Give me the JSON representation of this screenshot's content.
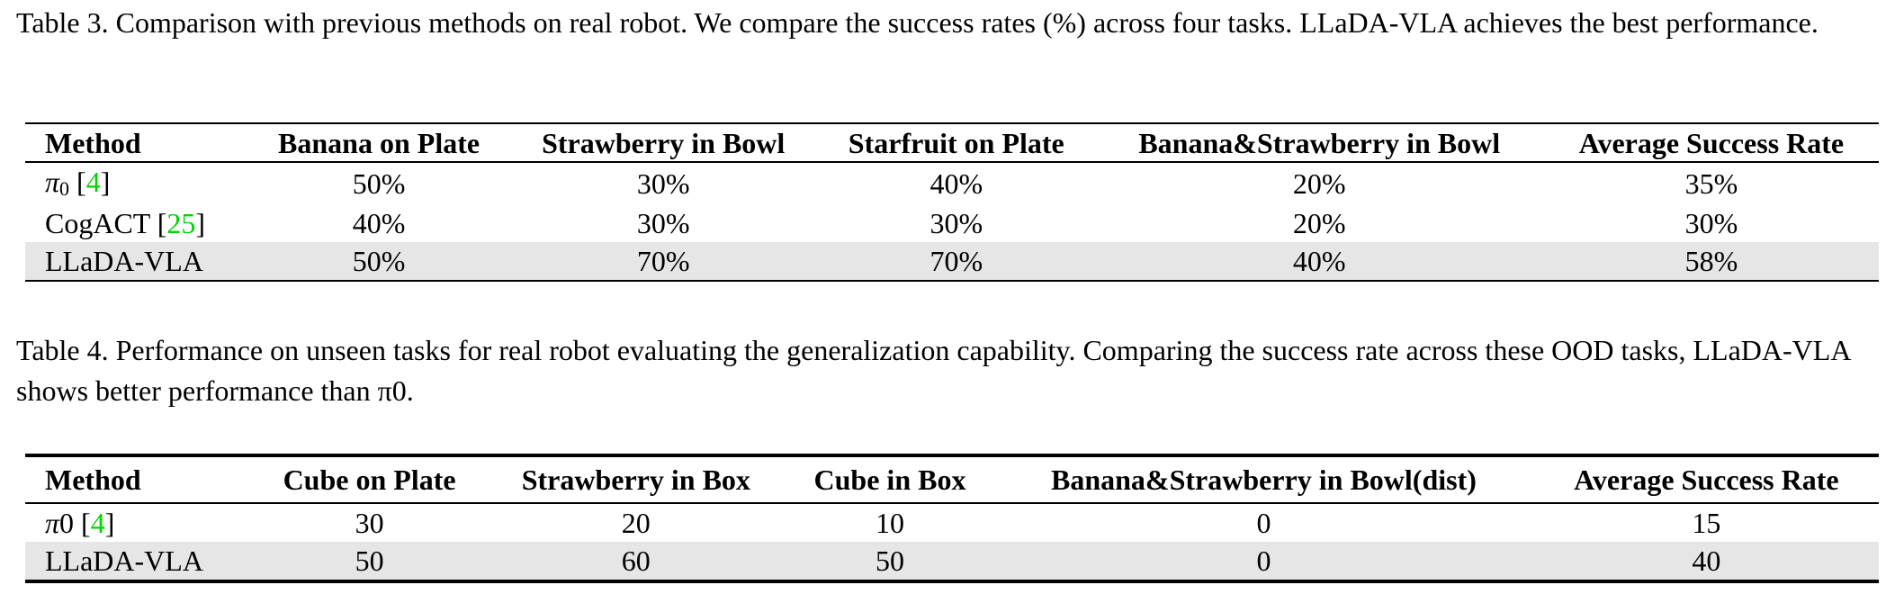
{
  "table3": {
    "caption": "Table 3. Comparison with previous methods on real robot. We compare the success rates (%) across four tasks. LLaDA-VLA achieves the best performance.",
    "headers": [
      "Method",
      "Banana on Plate",
      "Strawberry in Bowl",
      "Starfruit on Plate",
      "Banana&Strawberry in Bowl",
      "Average Success Rate"
    ],
    "rows": [
      {
        "method_symbol": "π",
        "method_sub": "0",
        "method_name": "",
        "cite_pre": " [",
        "cite": "4",
        "cite_post": "]",
        "values": [
          "50%",
          "30%",
          "40%",
          "20%",
          "35%"
        ],
        "highlight": false
      },
      {
        "method_symbol": "",
        "method_sub": "",
        "method_name": "CogACT",
        "cite_pre": " [",
        "cite": "25",
        "cite_post": "]",
        "values": [
          "40%",
          "30%",
          "30%",
          "20%",
          "30%"
        ],
        "highlight": false
      },
      {
        "method_symbol": "",
        "method_sub": "",
        "method_name": "LLaDA-VLA",
        "cite_pre": "",
        "cite": "",
        "cite_post": "",
        "values": [
          "50%",
          "70%",
          "70%",
          "40%",
          "58%"
        ],
        "highlight": true
      }
    ]
  },
  "table4": {
    "caption": "Table 4. Performance on unseen tasks for real robot evaluating the generalization capability. Comparing the success rate across these OOD tasks, LLaDA-VLA shows better performance than π0.",
    "headers": [
      "Method",
      "Cube on Plate",
      "Strawberry in Box",
      "Cube in Box",
      "Banana&Strawberry in Bowl(dist)",
      "Average Success Rate"
    ],
    "rows": [
      {
        "method_symbol": "π",
        "method_sub": "",
        "method_name": "0",
        "cite_pre": " [",
        "cite": "4",
        "cite_post": "]",
        "values": [
          "30",
          "20",
          "10",
          "0",
          "15"
        ],
        "highlight": false
      },
      {
        "method_symbol": "",
        "method_sub": "",
        "method_name": "LLaDA-VLA",
        "cite_pre": "",
        "cite": "",
        "cite_post": "",
        "values": [
          "50",
          "60",
          "50",
          "0",
          "40"
        ],
        "highlight": true
      }
    ]
  }
}
